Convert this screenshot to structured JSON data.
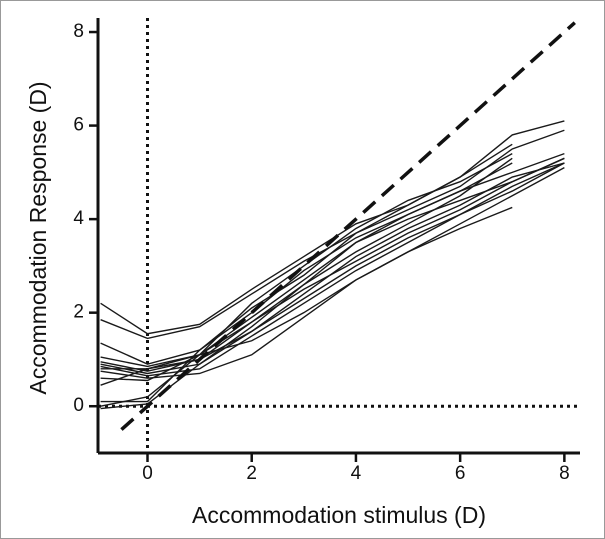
{
  "chart_data": {
    "type": "line",
    "xlabel": "Accommodation stimulus (D)",
    "ylabel": "Accommodation Response (D)",
    "x": [
      -0.9,
      0,
      1,
      2,
      3,
      4,
      5,
      6,
      7,
      8
    ],
    "series": [
      {
        "color": "#1a1a1a",
        "values": [
          2.2,
          1.55,
          1.75,
          2.5,
          3.2,
          3.9,
          4.3,
          4.9,
          5.8,
          6.1
        ]
      },
      {
        "color": "#1a1a1a",
        "values": [
          1.85,
          1.45,
          1.7,
          2.4,
          3.1,
          3.7,
          4.2,
          4.7,
          5.5,
          5.9
        ]
      },
      {
        "color": "#1a1a1a",
        "values": [
          1.35,
          0.9,
          1.2,
          2.0,
          2.9,
          3.6,
          4.1,
          4.6,
          5.0,
          5.4
        ]
      },
      {
        "color": "#1a1a1a",
        "values": [
          1.05,
          0.85,
          1.1,
          1.9,
          2.7,
          3.5,
          4.0,
          4.4,
          4.8,
          5.3
        ]
      },
      {
        "color": "#1a1a1a",
        "values": [
          0.95,
          0.75,
          1.0,
          1.8,
          2.6,
          3.3,
          3.9,
          4.5,
          5.3,
          null
        ]
      },
      {
        "color": "#1a1a1a",
        "values": [
          0.9,
          0.7,
          0.9,
          1.6,
          2.4,
          3.2,
          3.8,
          4.3,
          4.9,
          5.2
        ]
      },
      {
        "color": "#1a1a1a",
        "values": [
          0.85,
          0.65,
          0.8,
          1.5,
          2.2,
          2.9,
          3.5,
          4.1,
          4.7,
          5.2
        ]
      },
      {
        "color": "#1a1a1a",
        "values": [
          0.8,
          0.8,
          1.1,
          1.4,
          2.0,
          2.7,
          3.3,
          3.9,
          4.5,
          5.1
        ]
      },
      {
        "color": "#1a1a1a",
        "values": [
          0.75,
          0.6,
          0.7,
          1.1,
          1.9,
          2.7,
          3.3,
          3.8,
          4.25,
          null
        ]
      },
      {
        "color": "#1a1a1a",
        "values": [
          0.6,
          0.55,
          1.1,
          1.8,
          2.5,
          3.1,
          3.7,
          4.2,
          4.8,
          5.3
        ]
      },
      {
        "color": "#1a1a1a",
        "values": [
          0.45,
          0.8,
          1.0,
          1.6,
          2.3,
          3.0,
          3.6,
          4.1,
          4.6,
          5.2
        ]
      },
      {
        "color": "#1a1a1a",
        "values": [
          0.1,
          0.1,
          1.2,
          2.1,
          2.8,
          3.7,
          4.3,
          4.9,
          5.6,
          null
        ]
      },
      {
        "color": "#1a1a1a",
        "values": [
          -0.05,
          0.05,
          0.9,
          1.7,
          2.6,
          3.5,
          4.1,
          4.6,
          5.2,
          null
        ]
      },
      {
        "color": "#1a1a1a",
        "values": [
          0.0,
          0.2,
          1.1,
          2.2,
          3.0,
          3.8,
          4.4,
          4.8,
          5.4,
          null
        ]
      }
    ],
    "diagonal": {
      "x": [
        -0.5,
        8.2
      ],
      "y": [
        -0.5,
        8.2
      ]
    },
    "hline": 0,
    "vline": 0,
    "xlim": [
      -0.95,
      8.3
    ],
    "ylim": [
      -1,
      8.3
    ],
    "xticks": [
      0,
      2,
      4,
      6,
      8
    ],
    "yticks": [
      0,
      2,
      4,
      6,
      8
    ]
  }
}
